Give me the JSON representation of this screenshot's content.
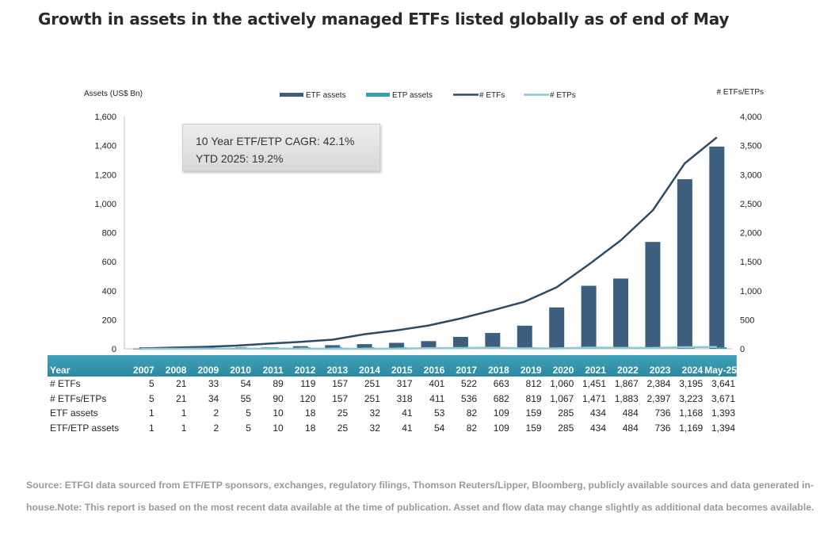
{
  "title": "Growth in assets in the actively managed ETFs listed globally as of end of May",
  "annotation": {
    "line1": "10 Year ETF/ETP CAGR: 42.1%",
    "line2": "YTD 2025: 19.2%"
  },
  "source": "Source: ETFGI data sourced from ETF/ETP sponsors, exchanges, regulatory filings, Thomson Reuters/Lipper, Bloomberg, publicly available sources and data generated in-house.Note: This report is based on the most recent data available at the time of publication. Asset and flow data may change slightly as additional data becomes available.",
  "colors": {
    "etf_assets": "#3d5f7d",
    "etp_assets": "#3a9cb5",
    "etfs_line": "#2e4a66",
    "etps_line": "#8ec7d4",
    "table_header": "#349ab2"
  },
  "table": {
    "header_label": "Year",
    "years": [
      "2007",
      "2008",
      "2009",
      "2010",
      "2011",
      "2012",
      "2013",
      "2014",
      "2015",
      "2016",
      "2017",
      "2018",
      "2019",
      "2020",
      "2021",
      "2022",
      "2023",
      "2024",
      "May-25"
    ],
    "rows": [
      {
        "label": "# ETFs",
        "values": [
          "5",
          "21",
          "33",
          "54",
          "89",
          "119",
          "157",
          "251",
          "317",
          "401",
          "522",
          "663",
          "812",
          "1,060",
          "1,451",
          "1,867",
          "2,384",
          "3,195",
          "3,641"
        ]
      },
      {
        "label": "# ETFs/ETPs",
        "values": [
          "5",
          "21",
          "34",
          "55",
          "90",
          "120",
          "157",
          "251",
          "318",
          "411",
          "536",
          "682",
          "819",
          "1,067",
          "1,471",
          "1,883",
          "2,397",
          "3,223",
          "3,671"
        ]
      },
      {
        "label": "ETF assets",
        "values": [
          "1",
          "1",
          "2",
          "5",
          "10",
          "18",
          "25",
          "32",
          "41",
          "53",
          "82",
          "109",
          "159",
          "285",
          "434",
          "484",
          "736",
          "1,168",
          "1,393"
        ]
      },
      {
        "label": "ETF/ETP assets",
        "values": [
          "1",
          "1",
          "2",
          "5",
          "10",
          "18",
          "25",
          "32",
          "41",
          "54",
          "82",
          "109",
          "159",
          "285",
          "434",
          "484",
          "736",
          "1,169",
          "1,394"
        ]
      }
    ]
  },
  "chart_data": {
    "type": "bar",
    "categories": [
      "2007",
      "2008",
      "2009",
      "2010",
      "2011",
      "2012",
      "2013",
      "2014",
      "2015",
      "2016",
      "2017",
      "2018",
      "2019",
      "2020",
      "2021",
      "2022",
      "2023",
      "2024",
      "May-25"
    ],
    "series": [
      {
        "name": "ETF assets",
        "type": "bar",
        "axis": "left",
        "values": [
          1,
          1,
          2,
          5,
          10,
          18,
          25,
          32,
          41,
          53,
          82,
          109,
          159,
          285,
          434,
          484,
          736,
          1168,
          1393
        ]
      },
      {
        "name": "ETP assets",
        "type": "bar",
        "axis": "left",
        "values": [
          0,
          0,
          0,
          0,
          0,
          0,
          0,
          0,
          0,
          1,
          0,
          0,
          0,
          0,
          0,
          0,
          0,
          1,
          1
        ]
      },
      {
        "name": "# ETFs",
        "type": "line",
        "axis": "right",
        "values": [
          5,
          21,
          33,
          54,
          89,
          119,
          157,
          251,
          317,
          401,
          522,
          663,
          812,
          1060,
          1451,
          1867,
          2384,
          3195,
          3641
        ]
      },
      {
        "name": "# ETPs",
        "type": "line",
        "axis": "right",
        "values": [
          0,
          0,
          1,
          1,
          1,
          1,
          0,
          0,
          1,
          10,
          14,
          19,
          7,
          7,
          20,
          16,
          13,
          28,
          30
        ]
      }
    ],
    "ylabel": "Assets (US$ Bn)",
    "y2label": "# ETFs/ETPs",
    "ylim": [
      0,
      1600
    ],
    "y2lim": [
      0,
      4000
    ],
    "yticks": [
      "0",
      "200",
      "400",
      "600",
      "800",
      "1,000",
      "1,200",
      "1,400",
      "1,600"
    ],
    "y2ticks": [
      "0",
      "500",
      "1,000",
      "1,500",
      "2,000",
      "2,500",
      "3,000",
      "3,500",
      "4,000"
    ],
    "legend_position": "top",
    "grid": false
  }
}
